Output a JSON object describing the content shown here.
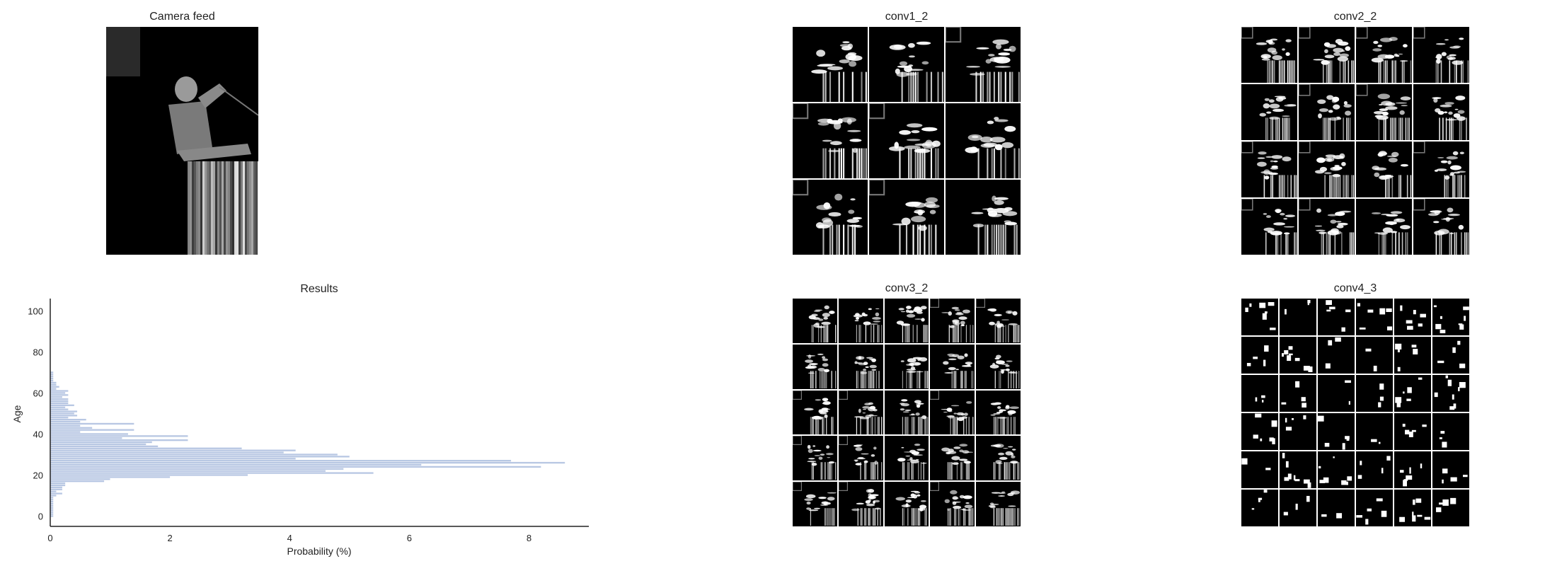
{
  "panels": {
    "camera": {
      "title": "Camera feed"
    },
    "conv1": {
      "title": "conv1_2",
      "rows": 3,
      "cols": 3
    },
    "conv2": {
      "title": "conv2_2",
      "rows": 4,
      "cols": 4
    },
    "conv3": {
      "title": "conv3_2",
      "rows": 5,
      "cols": 5
    },
    "conv4": {
      "title": "conv4_3",
      "rows": 6,
      "cols": 6
    }
  },
  "chart_data": {
    "type": "bar",
    "orientation": "horizontal",
    "title": "Results",
    "xlabel": "Probability (%)",
    "ylabel": "Age",
    "xlim": [
      0,
      9
    ],
    "ylim": [
      -5,
      106
    ],
    "xticks": [
      "0",
      "2",
      "4",
      "6",
      "8"
    ],
    "yticks": [
      "0",
      "20",
      "40",
      "60",
      "80",
      "100"
    ],
    "bar_color": "#b8c7e3",
    "grid": false,
    "categories": [
      0,
      1,
      2,
      3,
      4,
      5,
      6,
      7,
      8,
      9,
      10,
      11,
      12,
      13,
      14,
      15,
      16,
      17,
      18,
      19,
      20,
      21,
      22,
      23,
      24,
      25,
      26,
      27,
      28,
      29,
      30,
      31,
      32,
      33,
      34,
      35,
      36,
      37,
      38,
      39,
      40,
      41,
      42,
      43,
      44,
      45,
      46,
      47,
      48,
      49,
      50,
      51,
      52,
      53,
      54,
      55,
      56,
      57,
      58,
      59,
      60,
      61,
      62,
      63,
      64,
      65,
      66,
      67,
      68,
      69,
      70
    ],
    "values": [
      0.05,
      0.05,
      0.05,
      0.05,
      0.05,
      0.05,
      0.05,
      0.05,
      0.05,
      0.05,
      0.1,
      0.2,
      0.1,
      0.2,
      0.2,
      0.25,
      0.25,
      0.9,
      1.0,
      2.0,
      3.3,
      5.4,
      4.6,
      4.9,
      8.2,
      6.2,
      8.6,
      7.7,
      4.1,
      5.0,
      4.8,
      3.9,
      4.1,
      3.2,
      1.8,
      1.6,
      1.7,
      2.3,
      1.2,
      2.3,
      1.3,
      0.5,
      1.4,
      0.7,
      0.5,
      1.4,
      0.5,
      0.6,
      0.3,
      0.45,
      0.4,
      0.45,
      0.3,
      0.25,
      0.4,
      0.3,
      0.3,
      0.3,
      0.2,
      0.3,
      0.25,
      0.3,
      0.1,
      0.15,
      0.1,
      0.1,
      0.05,
      0.05,
      0.05,
      0.05,
      0.05
    ]
  }
}
